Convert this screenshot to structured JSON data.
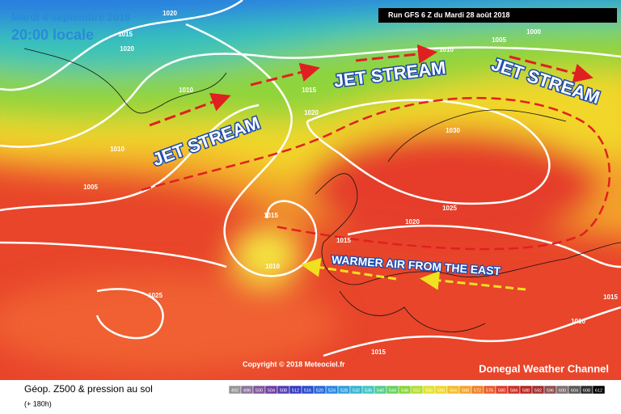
{
  "header": {
    "date": "Mardi 4 septembre 2018",
    "time": "20:00 locale",
    "run": "Run GFS 6 Z du Mardi 28 août 2018"
  },
  "annotations": {
    "jet_labels": [
      "JET STREAM",
      "JET STREAM",
      "JET STREAM"
    ],
    "warm_air": "WARMER AIR FROM THE EAST"
  },
  "isobar_labels": [
    1020,
    1015,
    1020,
    1010,
    1010,
    1005,
    1015,
    1020,
    1010,
    1005,
    1000,
    1030,
    1025,
    1020,
    1015,
    1010,
    1015,
    1025,
    1015,
    1015,
    1010
  ],
  "footer": {
    "copyright": "Copyright © 2018 Meteociel.fr",
    "channel": "Donegal Weather Channel",
    "title": "Géop. Z500 & pression au sol",
    "lead": "(+ 180h)"
  },
  "scale": [
    492,
    496,
    500,
    504,
    508,
    512,
    516,
    520,
    524,
    528,
    532,
    536,
    540,
    544,
    548,
    552,
    556,
    560,
    564,
    568,
    572,
    576,
    580,
    584,
    588,
    592,
    596,
    600,
    604,
    608,
    612
  ]
}
